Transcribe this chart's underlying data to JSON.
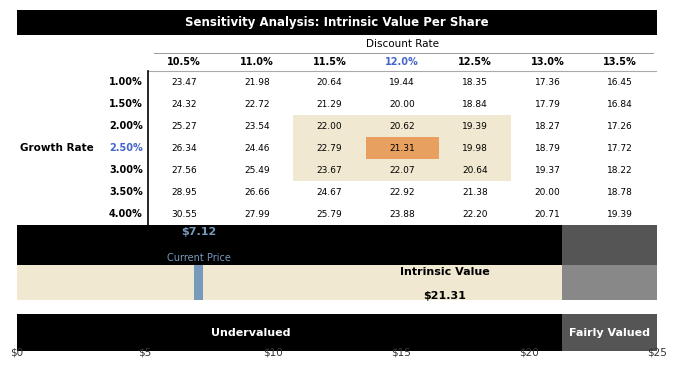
{
  "title": "Sensitivity Analysis: Intrinsic Value Per Share",
  "discount_rates": [
    "10.5%",
    "11.0%",
    "11.5%",
    "12.0%",
    "12.5%",
    "13.0%",
    "13.5%"
  ],
  "growth_rates": [
    "1.00%",
    "1.50%",
    "2.00%",
    "2.50%",
    "3.00%",
    "3.50%",
    "4.00%"
  ],
  "table_data": [
    [
      23.47,
      21.98,
      20.64,
      19.44,
      18.35,
      17.36,
      16.45
    ],
    [
      24.32,
      22.72,
      21.29,
      20.0,
      18.84,
      17.79,
      16.84
    ],
    [
      25.27,
      23.54,
      22.0,
      20.62,
      19.39,
      18.27,
      17.26
    ],
    [
      26.34,
      24.46,
      22.79,
      21.31,
      19.98,
      18.79,
      17.72
    ],
    [
      27.56,
      25.49,
      23.67,
      22.07,
      20.64,
      19.37,
      18.22
    ],
    [
      28.95,
      26.66,
      24.67,
      22.92,
      21.38,
      20.0,
      18.78
    ],
    [
      30.55,
      27.99,
      25.79,
      23.88,
      22.2,
      20.71,
      19.39
    ]
  ],
  "orange_cell": [
    3,
    3
  ],
  "beige_cells_rows": [
    2,
    3,
    4
  ],
  "beige_cells_cols": [
    2,
    3,
    4
  ],
  "current_price": 7.12,
  "intrinsic_value": 21.31,
  "x_min": 0,
  "x_max": 25,
  "black": "#000000",
  "white": "#ffffff",
  "beige": "#f0e8d0",
  "orange": "#e8a060",
  "blue_text": "#4466cc",
  "dark_gray": "#555555",
  "mid_gray": "#888888",
  "blue_bar": "#7799bb",
  "title_fontsize": 8.5,
  "header_fontsize": 7.5,
  "col_header_fontsize": 7.0,
  "data_fontsize": 6.5,
  "bar_label_fontsize": 8.0
}
